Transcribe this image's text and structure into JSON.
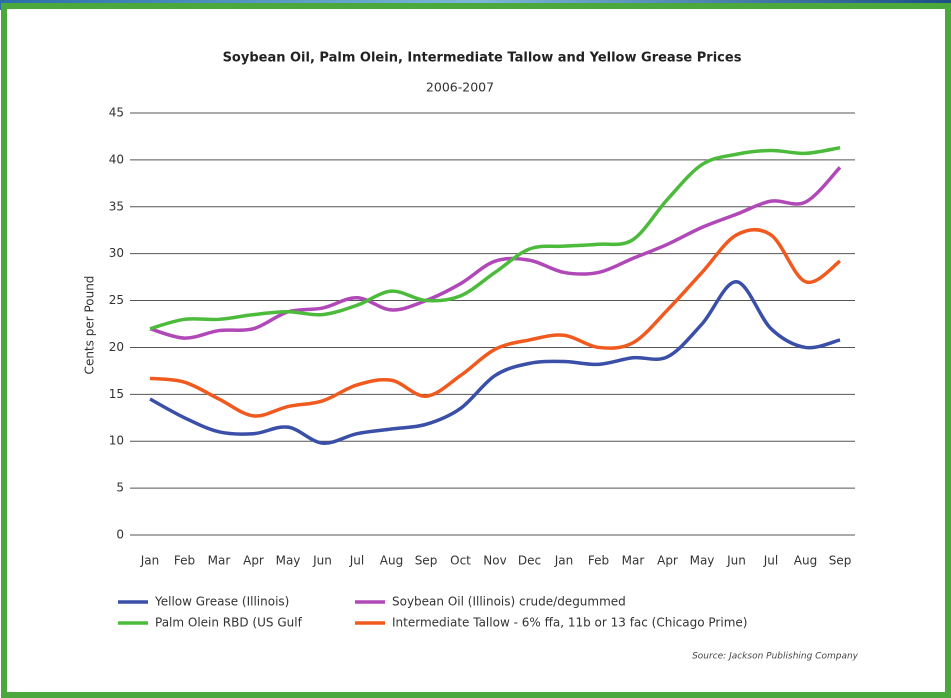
{
  "chart_data": {
    "type": "line",
    "title": "Soybean Oil, Palm Olein, Intermediate Tallow and Yellow Grease Prices",
    "subtitle": "2006-2007",
    "y_label": "Cents per Pound",
    "source": "Source: Jackson Publishing Company",
    "categories": [
      "Jan",
      "Feb",
      "Mar",
      "Apr",
      "May",
      "Jun",
      "Jul",
      "Aug",
      "Sep",
      "Oct",
      "Nov",
      "Dec",
      "Jan",
      "Feb",
      "Mar",
      "Apr",
      "May",
      "Jun",
      "Jul",
      "Aug",
      "Sep"
    ],
    "series": [
      {
        "name": "Yellow Grease (Illinois)",
        "color": "#3a4fa8",
        "values": [
          14.5,
          12.5,
          11,
          10.8,
          11.5,
          9.8,
          10.8,
          11.3,
          11.8,
          13.5,
          17,
          18.3,
          18.5,
          18.2,
          18.9,
          19,
          22.5,
          27,
          22,
          20,
          20.8
        ]
      },
      {
        "name": "Soybean Oil (Illinois) crude/degummed",
        "color": "#b048b8",
        "values": [
          22,
          21,
          21.8,
          22,
          23.8,
          24.2,
          25.3,
          24,
          25,
          26.8,
          29.2,
          29.3,
          28,
          28,
          29.5,
          31,
          32.8,
          34.2,
          35.6,
          35.5,
          39.2
        ]
      },
      {
        "name": "Palm Olein RBD (US Gulf",
        "color": "#4cbb3c",
        "values": [
          22,
          23,
          23,
          23.5,
          23.8,
          23.5,
          24.5,
          26,
          25,
          25.5,
          28,
          30.5,
          30.8,
          31,
          31.5,
          35.8,
          39.5,
          40.6,
          41,
          40.7,
          41.3
        ]
      },
      {
        "name": "Intermediate Tallow - 6% ffa, 11b or 13 fac (Chicago Prime)",
        "color": "#f05a1e",
        "values": [
          16.7,
          16.3,
          14.5,
          12.7,
          13.7,
          14.3,
          16,
          16.5,
          14.8,
          17,
          19.8,
          20.8,
          21.3,
          20,
          20.5,
          24,
          28,
          32,
          32,
          27,
          29.2
        ]
      }
    ],
    "ylim": [
      0,
      45
    ],
    "yticks": [
      0,
      5,
      10,
      15,
      20,
      25,
      30,
      35,
      40,
      45
    ],
    "grid": true,
    "legend": "bottom"
  }
}
